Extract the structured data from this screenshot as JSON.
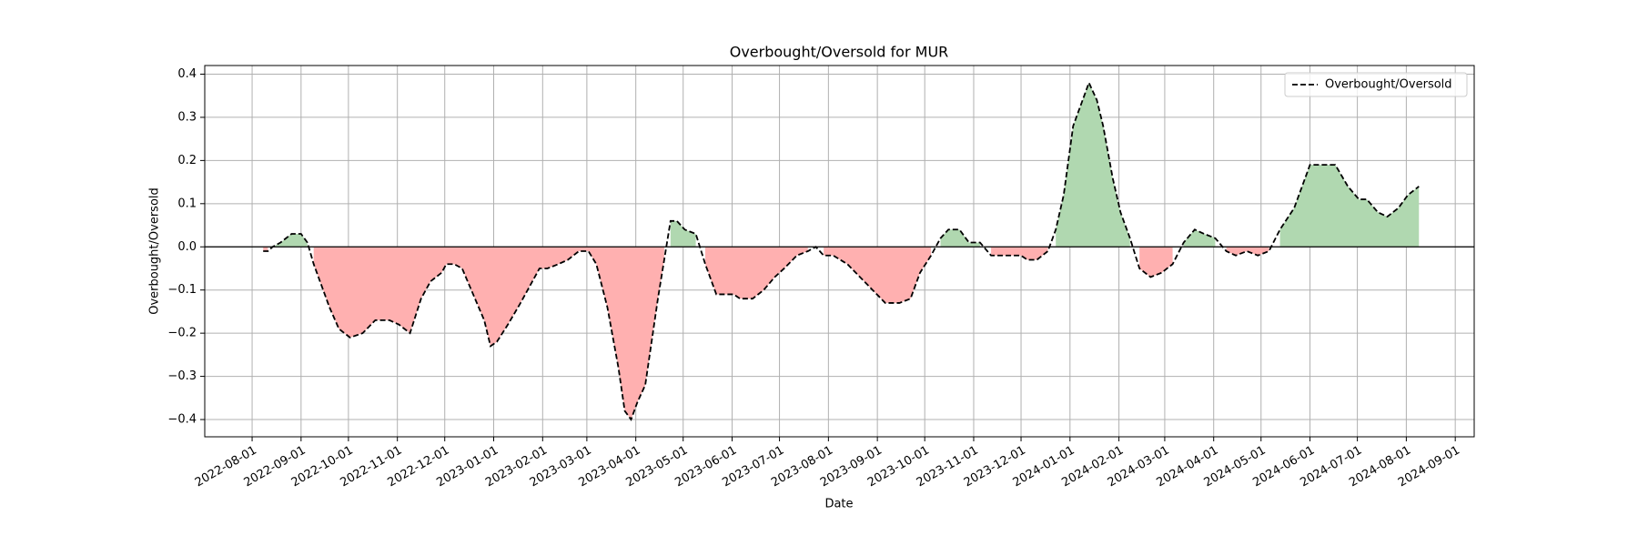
{
  "chart_data": {
    "type": "line",
    "title": "Overbought/Oversold for MUR",
    "xlabel": "Date",
    "ylabel": "Overbought/Oversold",
    "x": [
      "2022-08-08",
      "2022-08-11",
      "2022-08-14",
      "2022-08-19",
      "2022-08-26",
      "2022-09-01",
      "2022-09-05",
      "2022-09-09",
      "2022-09-14",
      "2022-09-19",
      "2022-09-25",
      "2022-10-02",
      "2022-10-10",
      "2022-10-18",
      "2022-10-27",
      "2022-11-02",
      "2022-11-09",
      "2022-11-16",
      "2022-11-22",
      "2022-11-29",
      "2022-12-02",
      "2022-12-07",
      "2022-12-12",
      "2022-12-19",
      "2022-12-26",
      "2022-12-30",
      "2023-01-03",
      "2023-01-10",
      "2023-01-18",
      "2023-01-24",
      "2023-01-30",
      "2023-02-04",
      "2023-02-11",
      "2023-02-17",
      "2023-02-24",
      "2023-03-02",
      "2023-03-07",
      "2023-03-14",
      "2023-03-21",
      "2023-03-25",
      "2023-03-29",
      "2023-04-02",
      "2023-04-07",
      "2023-04-11",
      "2023-04-15",
      "2023-04-19",
      "2023-04-23",
      "2023-04-27",
      "2023-05-02",
      "2023-05-09",
      "2023-05-15",
      "2023-05-22",
      "2023-05-27",
      "2023-06-02",
      "2023-06-06",
      "2023-06-14",
      "2023-06-21",
      "2023-06-28",
      "2023-07-04",
      "2023-07-12",
      "2023-07-19",
      "2023-07-24",
      "2023-07-29",
      "2023-08-04",
      "2023-08-13",
      "2023-08-21",
      "2023-08-29",
      "2023-09-06",
      "2023-09-15",
      "2023-09-22",
      "2023-09-28",
      "2023-10-05",
      "2023-10-11",
      "2023-10-16",
      "2023-10-23",
      "2023-10-29",
      "2023-11-05",
      "2023-11-12",
      "2023-11-21",
      "2023-12-01",
      "2023-12-05",
      "2023-12-11",
      "2023-12-18",
      "2023-12-23",
      "2023-12-28",
      "2024-01-03",
      "2024-01-09",
      "2024-01-13",
      "2024-01-18",
      "2024-01-22",
      "2024-01-28",
      "2024-02-02",
      "2024-02-08",
      "2024-02-14",
      "2024-02-21",
      "2024-02-28",
      "2024-03-06",
      "2024-03-13",
      "2024-03-20",
      "2024-03-26",
      "2024-04-02",
      "2024-04-09",
      "2024-04-15",
      "2024-04-22",
      "2024-04-29",
      "2024-05-06",
      "2024-05-13",
      "2024-05-22",
      "2024-06-01",
      "2024-06-09",
      "2024-06-17",
      "2024-06-25",
      "2024-07-02",
      "2024-07-07",
      "2024-07-14",
      "2024-07-20",
      "2024-07-27",
      "2024-08-02",
      "2024-08-09"
    ],
    "series": [
      {
        "name": "Overbought/Oversold",
        "color": "#000000",
        "values": [
          -0.01,
          -0.01,
          0.0,
          0.01,
          0.03,
          0.03,
          0.01,
          -0.04,
          -0.09,
          -0.14,
          -0.19,
          -0.21,
          -0.2,
          -0.17,
          -0.17,
          -0.18,
          -0.2,
          -0.12,
          -0.08,
          -0.06,
          -0.04,
          -0.04,
          -0.05,
          -0.11,
          -0.17,
          -0.23,
          -0.22,
          -0.18,
          -0.13,
          -0.09,
          -0.05,
          -0.05,
          -0.04,
          -0.03,
          -0.01,
          -0.01,
          -0.04,
          -0.14,
          -0.28,
          -0.38,
          -0.4,
          -0.36,
          -0.32,
          -0.22,
          -0.12,
          -0.03,
          0.06,
          0.06,
          0.04,
          0.03,
          -0.04,
          -0.11,
          -0.11,
          -0.11,
          -0.12,
          -0.12,
          -0.1,
          -0.07,
          -0.05,
          -0.02,
          -0.01,
          0.0,
          -0.02,
          -0.02,
          -0.04,
          -0.07,
          -0.1,
          -0.13,
          -0.13,
          -0.12,
          -0.06,
          -0.02,
          0.02,
          0.04,
          0.04,
          0.01,
          0.01,
          -0.02,
          -0.02,
          -0.02,
          -0.03,
          -0.03,
          -0.01,
          0.04,
          0.12,
          0.28,
          0.34,
          0.38,
          0.34,
          0.28,
          0.16,
          0.08,
          0.02,
          -0.05,
          -0.07,
          -0.06,
          -0.04,
          0.01,
          0.04,
          0.03,
          0.02,
          -0.01,
          -0.02,
          -0.01,
          -0.02,
          -0.01,
          0.04,
          0.09,
          0.19,
          0.19,
          0.19,
          0.14,
          0.11,
          0.11,
          0.08,
          0.07,
          0.09,
          0.12,
          0.14
        ]
      }
    ],
    "positive_color": "#b0d8b0",
    "negative_color": "#ffb0b0",
    "hline": 0,
    "xlim": [
      "2022-07-02",
      "2024-09-13"
    ],
    "xticks": [
      "2022-08-01",
      "2022-09-01",
      "2022-10-01",
      "2022-11-01",
      "2022-12-01",
      "2023-01-01",
      "2023-02-01",
      "2023-03-01",
      "2023-04-01",
      "2023-05-01",
      "2023-06-01",
      "2023-07-01",
      "2023-08-01",
      "2023-09-01",
      "2023-10-01",
      "2023-11-01",
      "2023-12-01",
      "2024-01-01",
      "2024-02-01",
      "2024-03-01",
      "2024-04-01",
      "2024-05-01",
      "2024-06-01",
      "2024-07-01",
      "2024-08-01",
      "2024-09-01"
    ],
    "ylim": [
      -0.44,
      0.42
    ],
    "yticks": [
      {
        "value": -0.4,
        "label": "−0.4"
      },
      {
        "value": -0.3,
        "label": "−0.3"
      },
      {
        "value": -0.2,
        "label": "−0.2"
      },
      {
        "value": -0.1,
        "label": "−0.1"
      },
      {
        "value": 0,
        "label": "0.0"
      },
      {
        "value": 0.1,
        "label": "0.1"
      },
      {
        "value": 0.2,
        "label": "0.2"
      },
      {
        "value": 0.3,
        "label": "0.3"
      },
      {
        "value": 0.4,
        "label": "0.4"
      }
    ],
    "grid": true,
    "legend": "upper right"
  }
}
